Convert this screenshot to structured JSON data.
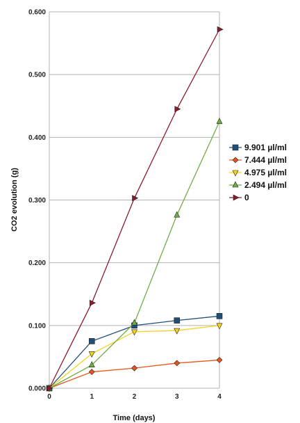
{
  "chart_data": {
    "type": "line",
    "title": "",
    "xlabel": "Time (days)",
    "ylabel": "CO2 evolution (g)",
    "x": [
      0,
      1,
      2,
      3,
      4
    ],
    "x_ticks": [
      "0",
      "1",
      "2",
      "3",
      "4"
    ],
    "xlim": [
      0,
      4
    ],
    "ylim": [
      0,
      0.6
    ],
    "y_ticks": [
      "0.000",
      "0.100",
      "0.200",
      "0.300",
      "0.400",
      "0.500",
      "0.600"
    ],
    "grid": "horizontal",
    "legend_position": "right",
    "series": [
      {
        "name": "9.901 µl/ml",
        "color": "#1f4e79",
        "marker": "square",
        "values": [
          0.0,
          0.075,
          0.1,
          0.108,
          0.115
        ]
      },
      {
        "name": "7.444 µl/ml",
        "color": "#e8541c",
        "marker": "diamond",
        "values": [
          0.0,
          0.026,
          0.032,
          0.04,
          0.045
        ]
      },
      {
        "name": "4.975 µl/ml",
        "color": "#f2d21b",
        "marker": "triangle-down",
        "values": [
          0.0,
          0.055,
          0.09,
          0.092,
          0.1
        ]
      },
      {
        "name": "2.494 µl/ml",
        "color": "#6fac46",
        "marker": "triangle-up",
        "values": [
          0.0,
          0.037,
          0.104,
          0.276,
          0.425
        ]
      },
      {
        "name": "0",
        "color": "#8b1a2e",
        "marker": "triangle-right",
        "values": [
          0.0,
          0.136,
          0.303,
          0.445,
          0.572
        ]
      }
    ]
  }
}
